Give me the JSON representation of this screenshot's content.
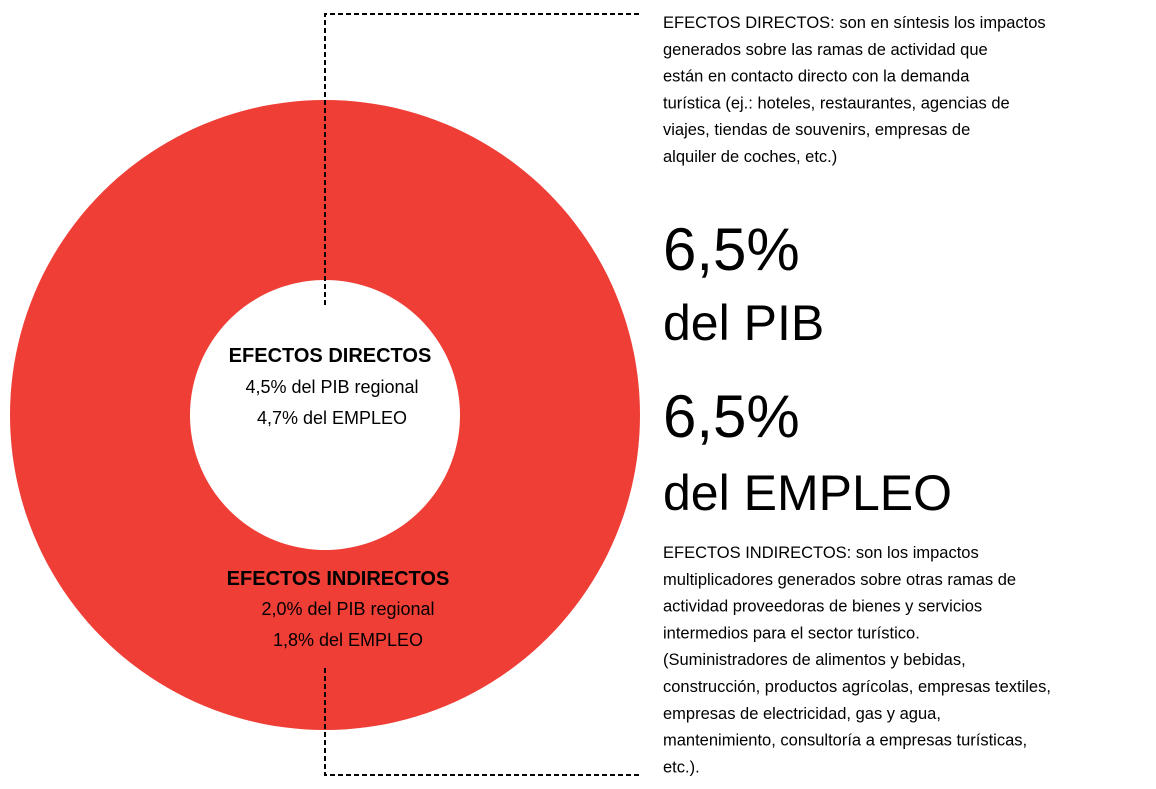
{
  "direct": {
    "title": "EFECTOS DIRECTOS",
    "lines": [
      "4,5% del PIB regional",
      "4,7% del EMPLEO"
    ]
  },
  "indirect": {
    "title": "EFECTOS INDIRECTOS",
    "lines": [
      "2,0% del PIB regional",
      "1,8% del EMPLEO"
    ]
  },
  "direct_description": [
    "EFECTOS DIRECTOS: son en síntesis los impactos",
    "generados sobre las ramas de actividad que",
    "están en contacto directo con la demanda",
    "turística (ej.: hoteles, restaurantes, agencias de",
    "viajes, tiendas de souvenirs, empresas de",
    "alquiler de coches, etc.)"
  ],
  "highlights": [
    {
      "value": "6,5%",
      "label": "del PIB"
    },
    {
      "value": "6,5%",
      "label": "del EMPLEO"
    }
  ],
  "indirect_description": [
    "EFECTOS INDIRECTOS: son los impactos",
    "multiplicadores generados sobre otras ramas de",
    "actividad proveedoras de bienes y servicios",
    "intermedios para el sector turístico.",
    "(Suministradores de alimentos y bebidas,",
    "construcción, productos agrícolas, empresas textiles,",
    "empresas de electricidad, gas y agua,",
    "mantenimiento, consultoría a empresas turísticas,",
    "etc.)."
  ]
}
